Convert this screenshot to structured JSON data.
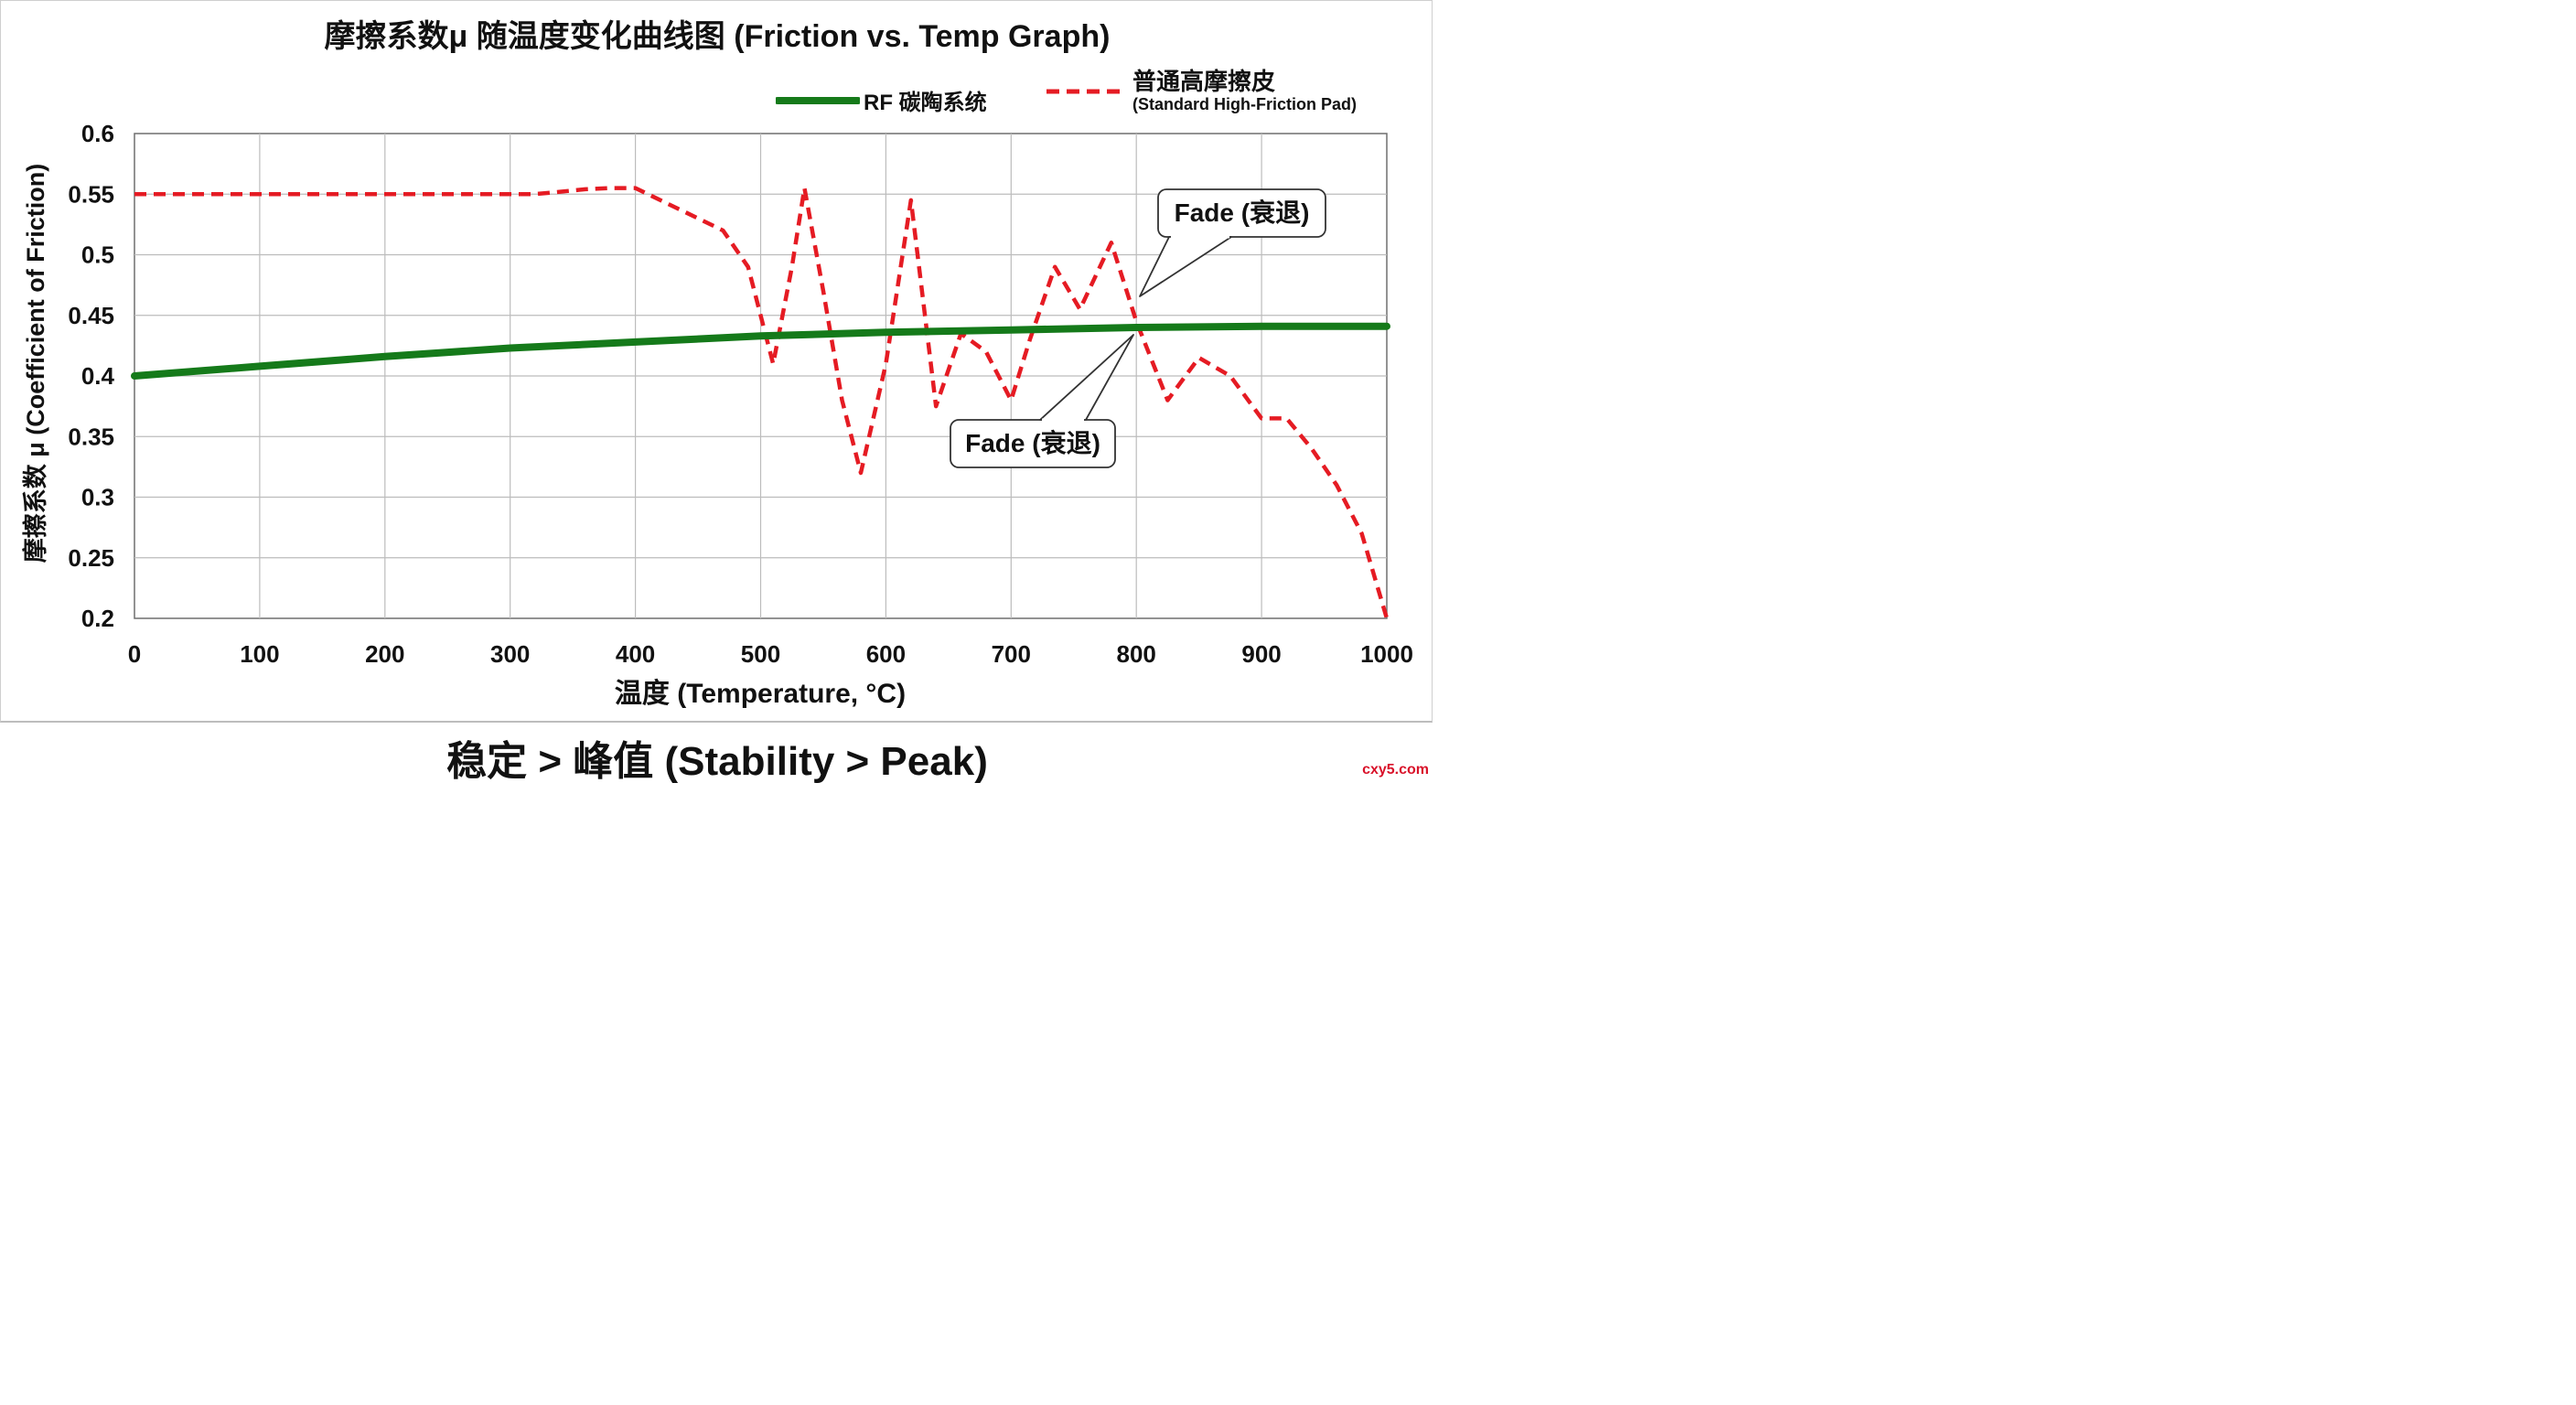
{
  "chart_data": {
    "type": "line",
    "title": "摩擦系数μ 随温度变化曲线图 (Friction vs. Temp Graph)",
    "subtitle": "稳定 > 峰值 (Stability > Peak)",
    "xlabel": "温度 (Temperature, °C)",
    "ylabel": "摩擦系数 μ (Coefficient of Friction)",
    "xlim": [
      0,
      1000
    ],
    "ylim": [
      0.2,
      0.6
    ],
    "x_ticks": [
      "0",
      "100",
      "200",
      "300",
      "400",
      "500",
      "600",
      "700",
      "800",
      "900",
      "1000"
    ],
    "y_ticks": [
      "0.6",
      "0.55",
      "0.5",
      "0.45",
      "0.4",
      "0.35",
      "0.3",
      "0.25",
      "0.2"
    ],
    "grid": true,
    "legend_position": "top-right",
    "series": [
      {
        "name": "RF 碳陶系统",
        "color": "#157a1a",
        "style": "solid",
        "x": [
          0,
          100,
          200,
          300,
          400,
          500,
          600,
          700,
          800,
          900,
          1000
        ],
        "y": [
          0.4,
          0.408,
          0.416,
          0.423,
          0.428,
          0.433,
          0.436,
          0.438,
          0.44,
          0.441,
          0.441
        ]
      },
      {
        "name": "普通高摩擦皮",
        "name_en": "(Standard High-Friction Pad)",
        "color": "#e51b23",
        "style": "dashed",
        "x": [
          0,
          100,
          200,
          300,
          320,
          340,
          360,
          380,
          400,
          420,
          450,
          470,
          490,
          500,
          510,
          525,
          535,
          550,
          565,
          580,
          600,
          620,
          640,
          660,
          680,
          700,
          715,
          735,
          755,
          780,
          800,
          825,
          850,
          875,
          900,
          920,
          940,
          960,
          980,
          1000
        ],
        "y": [
          0.55,
          0.55,
          0.55,
          0.55,
          0.55,
          0.552,
          0.554,
          0.555,
          0.555,
          0.545,
          0.53,
          0.52,
          0.49,
          0.45,
          0.41,
          0.49,
          0.555,
          0.47,
          0.38,
          0.32,
          0.41,
          0.545,
          0.375,
          0.435,
          0.42,
          0.38,
          0.43,
          0.49,
          0.455,
          0.51,
          0.445,
          0.38,
          0.415,
          0.4,
          0.365,
          0.365,
          0.34,
          0.31,
          0.27,
          0.2
        ]
      }
    ],
    "annotations": [
      {
        "text": "Fade (衰退)",
        "x": 803,
        "y": 0.465
      },
      {
        "text": "Fade (衰退)",
        "x": 797,
        "y": 0.44
      }
    ]
  },
  "colors": {
    "frame": "#cfcfcf",
    "grid": "#bcbcbc",
    "text": "#111111"
  },
  "watermark": "cxy5.com"
}
